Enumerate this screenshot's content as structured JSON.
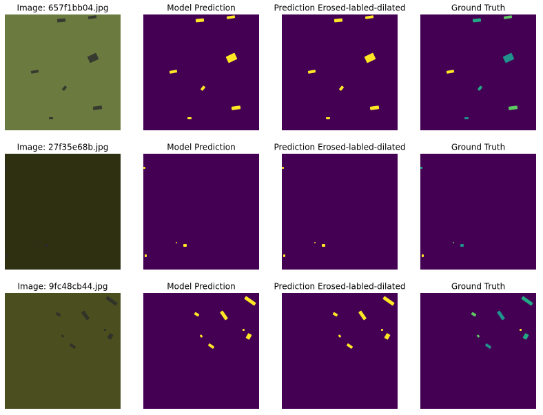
{
  "rows": [
    [
      "Image: 657f1bb04.jpg",
      "Model Prediction",
      "Prediction Erosed-labled-dilated",
      "Ground Truth"
    ],
    [
      "Image: 27f35e68b.jpg",
      "Model Prediction",
      "Prediction Erosed-labled-dilated",
      "Ground Truth"
    ],
    [
      "Image: 9fc48cb44.jpg",
      "Model Prediction",
      "Prediction Erosed-labled-dilated",
      "Ground Truth"
    ]
  ]
}
